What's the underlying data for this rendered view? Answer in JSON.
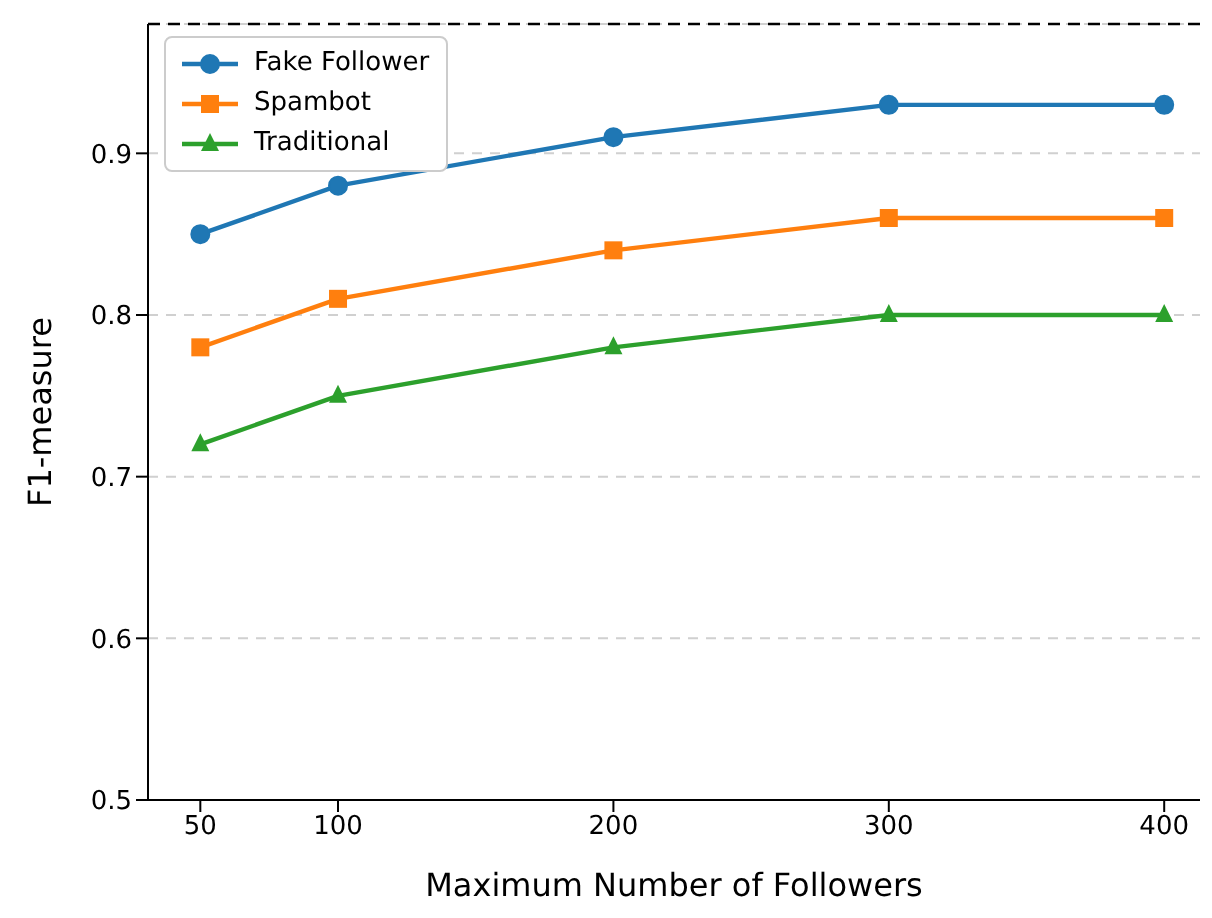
{
  "chart_data": {
    "type": "line",
    "xlabel": "Maximum Number of Followers",
    "ylabel": "F1-measure",
    "x": [
      50,
      100,
      200,
      300,
      400
    ],
    "series": [
      {
        "name": "Fake Follower",
        "color": "#1f77b4",
        "marker": "circle",
        "values": [
          0.85,
          0.88,
          0.91,
          0.93,
          0.93
        ]
      },
      {
        "name": "Spambot",
        "color": "#ff7f0e",
        "marker": "square",
        "values": [
          0.78,
          0.81,
          0.84,
          0.86,
          0.86
        ]
      },
      {
        "name": "Traditional",
        "color": "#2ca02c",
        "marker": "triangle",
        "values": [
          0.72,
          0.75,
          0.78,
          0.8,
          0.8
        ]
      }
    ],
    "xlim": [
      31,
      413
    ],
    "xticks": [
      50,
      100,
      200,
      300,
      400
    ],
    "ylim": [
      0.5,
      0.98
    ],
    "yticks": [
      0.5,
      0.6,
      0.7,
      0.8,
      0.9
    ],
    "grid": "y",
    "legend": "top left",
    "line_style": "solid",
    "ref_lines": [
      {
        "axis": "y",
        "value": 0.98,
        "color": "#000000",
        "line_style": "dashed"
      }
    ]
  }
}
